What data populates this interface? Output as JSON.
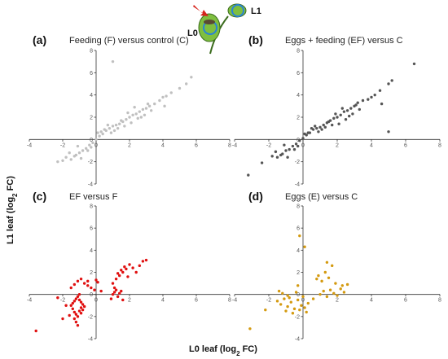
{
  "inset": {
    "label_l0": "L0",
    "label_l1": "L1",
    "colors": {
      "leaf": "#7fbf3f",
      "leaf_outline": "#3a6b1c",
      "ring": "#2a82d6",
      "arrow": "#d6241c",
      "larva": "#5a4a33",
      "eggs": "#e8e0b0"
    }
  },
  "axes": {
    "y_title": "L1 leaf (log",
    "y_sub": "2",
    "y_title_end": " FC)",
    "x_title": "L0 leaf (log",
    "x_sub": "2",
    "x_title_end": " FC)"
  },
  "chart_data": [
    {
      "type": "scatter",
      "panel": "(a)",
      "title": "Feeding (F) versus control (C)",
      "color": "#c0c0c0",
      "xlim": [
        -4,
        8
      ],
      "ylim": [
        -4,
        8
      ],
      "x_ticks": [
        -4,
        -2,
        0,
        2,
        4,
        6,
        8
      ],
      "y_ticks": [
        -4,
        -2,
        0,
        2,
        4,
        6,
        8
      ],
      "x": [
        -1.8,
        -1.5,
        -1.2,
        -1.0,
        -0.8,
        -0.6,
        -0.4,
        -0.2,
        0.0,
        0.2,
        0.4,
        0.6,
        0.8,
        1.0,
        1.2,
        1.4,
        1.6,
        1.8,
        2.0,
        2.2,
        2.4,
        2.6,
        2.8,
        3.0,
        3.2,
        3.5,
        3.8,
        4.0,
        4.2,
        4.5,
        5.0,
        5.4,
        5.7,
        -1.6,
        -1.3,
        -0.9,
        -0.5,
        0.1,
        0.5,
        0.9,
        1.3,
        1.7,
        2.1,
        2.5,
        2.9,
        3.3,
        -2.0,
        -2.3,
        1.1,
        1.5,
        0.7,
        -0.3,
        2.7,
        3.1,
        1.9,
        4.1,
        0.3,
        -1.1,
        2.3,
        1.0
      ],
      "y": [
        -1.6,
        -1.8,
        -1.4,
        -1.2,
        -1.0,
        -0.8,
        -0.5,
        -0.3,
        0.0,
        0.3,
        0.5,
        0.8,
        1.0,
        1.2,
        1.3,
        1.4,
        1.6,
        1.8,
        2.0,
        2.2,
        2.3,
        2.5,
        2.7,
        2.8,
        3.0,
        3.2,
        3.5,
        3.8,
        3.9,
        4.2,
        4.6,
        5.0,
        5.6,
        -1.2,
        -1.5,
        -1.7,
        -1.0,
        0.6,
        0.9,
        0.6,
        1.0,
        1.2,
        1.5,
        1.9,
        2.2,
        2.6,
        -1.9,
        -2.0,
        0.8,
        1.7,
        1.3,
        -0.7,
        2.0,
        3.2,
        2.4,
        3.0,
        0.7,
        -0.6,
        2.9,
        7.0
      ]
    },
    {
      "type": "scatter",
      "panel": "(b)",
      "title": "Eggs + feeding (EF) versus C",
      "color": "#555555",
      "xlim": [
        -4,
        8
      ],
      "ylim": [
        -4,
        8
      ],
      "x_ticks": [
        -4,
        -2,
        0,
        2,
        4,
        6,
        8
      ],
      "y_ticks": [
        -4,
        -2,
        0,
        2,
        4,
        6,
        8
      ],
      "x": [
        -1.8,
        -1.5,
        -1.2,
        -1.0,
        -0.8,
        -0.6,
        -0.4,
        -0.2,
        0.0,
        0.2,
        0.4,
        0.6,
        0.8,
        1.0,
        1.2,
        1.4,
        1.6,
        1.8,
        2.0,
        2.2,
        2.4,
        2.6,
        2.8,
        3.0,
        3.2,
        3.5,
        3.8,
        4.0,
        4.2,
        4.5,
        5.0,
        5.2,
        6.5,
        -1.6,
        -1.3,
        -0.9,
        -0.5,
        0.1,
        0.5,
        0.9,
        1.3,
        1.7,
        2.1,
        2.5,
        2.9,
        3.3,
        -2.4,
        -3.2,
        1.1,
        1.5,
        0.7,
        -0.3,
        2.7,
        3.1,
        1.9,
        4.6,
        0.3,
        -1.1,
        2.3,
        5.0
      ],
      "y": [
        -1.5,
        -1.6,
        -1.3,
        -1.0,
        -0.9,
        -0.6,
        -0.4,
        -0.1,
        0.1,
        0.4,
        0.6,
        0.9,
        1.0,
        1.1,
        1.3,
        1.5,
        1.7,
        1.9,
        2.0,
        2.2,
        2.5,
        2.6,
        2.8,
        3.0,
        3.3,
        3.5,
        3.6,
        3.8,
        4.0,
        4.4,
        5.0,
        5.3,
        6.8,
        -1.1,
        -1.4,
        -1.6,
        -0.9,
        0.5,
        1.0,
        0.7,
        1.1,
        1.3,
        1.4,
        1.8,
        2.3,
        2.7,
        -2.1,
        -3.2,
        0.9,
        1.6,
        1.2,
        -0.6,
        2.1,
        3.1,
        2.3,
        3.2,
        0.6,
        -0.5,
        2.8,
        0.7
      ]
    },
    {
      "type": "scatter",
      "panel": "(c)",
      "title": "EF versus F",
      "color": "#e01010",
      "xlim": [
        -4,
        8
      ],
      "ylim": [
        -4,
        8
      ],
      "x_ticks": [
        -4,
        -2,
        0,
        2,
        4,
        6,
        8
      ],
      "y_ticks": [
        -4,
        -2,
        0,
        2,
        4,
        6,
        8
      ],
      "x": [
        -1.5,
        -1.4,
        -1.3,
        -1.2,
        -1.1,
        -1.0,
        -0.9,
        -0.8,
        -1.3,
        -1.2,
        -1.1,
        -1.0,
        -0.9,
        -0.8,
        -0.7,
        -1.4,
        -1.3,
        -1.2,
        -1.1,
        -1.0,
        -0.9,
        -1.5,
        -1.3,
        -1.1,
        -0.9,
        -0.7,
        -0.5,
        -0.3,
        -0.1,
        0.0,
        0.1,
        1.0,
        1.1,
        1.2,
        1.3,
        1.4,
        1.5,
        1.0,
        1.2,
        1.4,
        1.6,
        1.8,
        1.3,
        1.5,
        1.7,
        2.0,
        2.2,
        2.4,
        2.6,
        2.8,
        3.0,
        1.9,
        1.1,
        0.9,
        -2.3,
        -3.6,
        -2.0,
        -1.8,
        -1.6,
        -0.5,
        0.3,
        1.6
      ],
      "y": [
        -1.0,
        -0.8,
        -0.6,
        -0.4,
        -0.2,
        0.0,
        -1.2,
        -1.4,
        -1.6,
        -1.8,
        -2.0,
        -0.5,
        -0.7,
        -0.9,
        -1.1,
        -1.3,
        -2.2,
        -2.5,
        -2.8,
        -1.5,
        -1.7,
        0.6,
        0.9,
        1.2,
        1.4,
        1.0,
        0.8,
        0.6,
        0.4,
        1.3,
        1.1,
        0.0,
        0.2,
        0.4,
        -0.2,
        0.1,
        0.3,
        1.0,
        1.4,
        1.7,
        2.0,
        2.3,
        1.9,
        2.2,
        2.5,
        2.7,
        2.4,
        2.0,
        2.6,
        3.0,
        3.1,
        1.6,
        0.6,
        -0.4,
        -0.3,
        -3.3,
        -2.2,
        -1.0,
        -1.9,
        1.2,
        0.3,
        -0.5
      ]
    },
    {
      "type": "scatter",
      "panel": "(d)",
      "title": "Eggs (E) versus C",
      "color": "#d49a10",
      "xlim": [
        -4,
        8
      ],
      "ylim": [
        -4,
        8
      ],
      "x_ticks": [
        -4,
        -2,
        0,
        2,
        4,
        6,
        8
      ],
      "y_ticks": [
        -4,
        -2,
        0,
        2,
        4,
        6,
        8
      ],
      "x": [
        -1.5,
        -1.3,
        -1.1,
        -0.9,
        -0.7,
        -0.5,
        -0.3,
        -0.1,
        0.1,
        0.3,
        -1.2,
        -0.8,
        -0.4,
        0.0,
        -1.0,
        -0.6,
        -0.2,
        0.2,
        -1.4,
        -0.9,
        1.0,
        1.2,
        1.4,
        1.6,
        1.8,
        2.0,
        2.2,
        2.4,
        1.1,
        1.5,
        1.9,
        2.3,
        0.8,
        1.3,
        1.7,
        -0.2,
        0.1,
        -2.2,
        -3.1,
        -0.3,
        2.6,
        0.6,
        1.4,
        0.9
      ],
      "y": [
        -0.6,
        -0.9,
        -0.4,
        -1.1,
        -0.7,
        -1.3,
        -0.5,
        -1.0,
        -1.2,
        -0.8,
        0.1,
        -0.3,
        0.2,
        -0.2,
        -1.5,
        -1.7,
        -1.4,
        -1.6,
        0.3,
        -0.1,
        0.0,
        0.3,
        -0.2,
        0.4,
        0.1,
        -0.1,
        0.5,
        0.2,
        1.2,
        1.5,
        1.0,
        0.8,
        1.4,
        2.0,
        2.6,
        5.3,
        4.3,
        -1.4,
        -3.1,
        0.8,
        0.9,
        -0.4,
        2.9,
        1.7
      ]
    }
  ]
}
